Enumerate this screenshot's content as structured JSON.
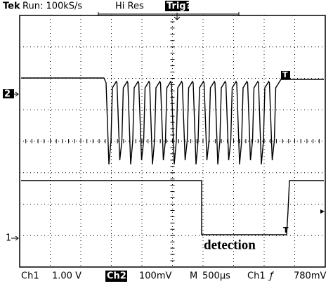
{
  "header": {
    "brand": "Tek",
    "status": "Run: 100kS/s",
    "mode": "Hi Res",
    "trigger": "Trig?"
  },
  "markers": {
    "ch2": "2",
    "ch1": "1",
    "trig_ch2": "T",
    "trig_ch1": "T"
  },
  "annotation": "detection",
  "footer": {
    "ch1_label": "Ch1",
    "ch1_scale": "1.00 V",
    "ch2_label": "Ch2",
    "ch2_scale": "100mV",
    "time_label": "M",
    "time_scale": "500µs",
    "trig_source": "Ch1",
    "trig_slope": "ƒ",
    "trig_level": "780mV"
  }
}
